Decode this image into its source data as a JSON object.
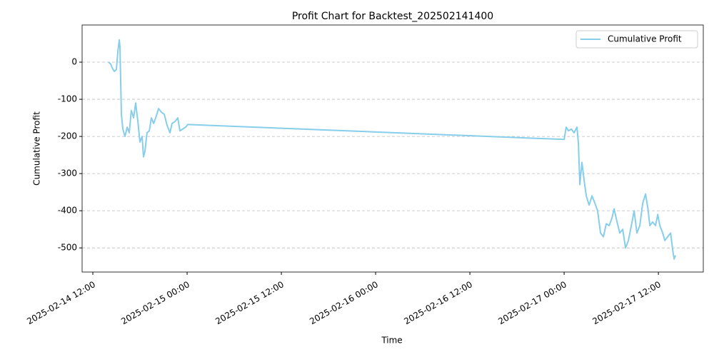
{
  "chart_data": {
    "type": "line",
    "title": "Profit Chart for Backtest_202502141400",
    "xlabel": "Time",
    "ylabel": "Cumulative Profit",
    "x": [
      "2025-02-14 14:00",
      "2025-02-14 14:16",
      "2025-02-14 14:27",
      "2025-02-14 14:44",
      "2025-02-14 15:00",
      "2025-02-14 15:11",
      "2025-02-14 15:22",
      "2025-02-14 15:27",
      "2025-02-14 15:38",
      "2025-02-14 15:49",
      "2025-02-14 16:05",
      "2025-02-14 16:22",
      "2025-02-14 16:38",
      "2025-02-14 16:54",
      "2025-02-14 17:11",
      "2025-02-14 17:27",
      "2025-02-14 17:44",
      "2025-02-14 18:00",
      "2025-02-14 18:16",
      "2025-02-14 18:27",
      "2025-02-14 18:38",
      "2025-02-14 18:54",
      "2025-02-14 19:11",
      "2025-02-14 19:27",
      "2025-02-14 19:44",
      "2025-02-14 20:00",
      "2025-02-14 20:22",
      "2025-02-14 20:44",
      "2025-02-14 21:05",
      "2025-02-14 21:27",
      "2025-02-14 21:49",
      "2025-02-14 22:05",
      "2025-02-14 22:27",
      "2025-02-14 22:49",
      "2025-02-14 23:05",
      "2025-02-14 23:27",
      "2025-02-14 23:49",
      "2025-02-15 00:05",
      "2025-02-17 00:00",
      "2025-02-17 00:16",
      "2025-02-17 00:33",
      "2025-02-17 00:55",
      "2025-02-17 01:16",
      "2025-02-17 01:38",
      "2025-02-17 01:49",
      "2025-02-17 02:00",
      "2025-02-17 02:16",
      "2025-02-17 02:33",
      "2025-02-17 02:49",
      "2025-02-17 03:11",
      "2025-02-17 03:33",
      "2025-02-17 03:55",
      "2025-02-17 04:16",
      "2025-02-17 04:38",
      "2025-02-17 05:00",
      "2025-02-17 05:22",
      "2025-02-17 05:44",
      "2025-02-17 06:05",
      "2025-02-17 06:22",
      "2025-02-17 06:44",
      "2025-02-17 07:05",
      "2025-02-17 07:27",
      "2025-02-17 07:49",
      "2025-02-17 08:11",
      "2025-02-17 08:33",
      "2025-02-17 08:55",
      "2025-02-17 09:16",
      "2025-02-17 09:38",
      "2025-02-17 10:00",
      "2025-02-17 10:22",
      "2025-02-17 10:38",
      "2025-02-17 10:55",
      "2025-02-17 11:16",
      "2025-02-17 11:38",
      "2025-02-17 11:55",
      "2025-02-17 12:11",
      "2025-02-17 12:33",
      "2025-02-17 12:49",
      "2025-02-17 13:11",
      "2025-02-17 13:33",
      "2025-02-17 13:49",
      "2025-02-17 14:00",
      "2025-02-17 14:11"
    ],
    "series": [
      {
        "name": "Cumulative Profit",
        "color": "#87ceeb",
        "values": [
          0,
          -5,
          -15,
          -25,
          -20,
          30,
          60,
          40,
          -140,
          -180,
          -200,
          -175,
          -190,
          -130,
          -150,
          -110,
          -160,
          -215,
          -200,
          -255,
          -240,
          -190,
          -185,
          -150,
          -165,
          -150,
          -125,
          -135,
          -140,
          -170,
          -190,
          -165,
          -160,
          -150,
          -185,
          -180,
          -175,
          -168,
          -208,
          -175,
          -185,
          -180,
          -190,
          -175,
          -220,
          -330,
          -270,
          -320,
          -360,
          -385,
          -360,
          -380,
          -400,
          -460,
          -470,
          -435,
          -440,
          -420,
          -395,
          -430,
          -460,
          -450,
          -500,
          -480,
          -440,
          -400,
          -460,
          -440,
          -380,
          -355,
          -390,
          -440,
          -430,
          -440,
          -410,
          -440,
          -460,
          -480,
          -470,
          -460,
          -505,
          -530,
          -520
        ]
      }
    ],
    "xlim": [
      "2025-02-14 10:38",
      "2025-02-17 17:43"
    ],
    "xticks": [
      "2025-02-14 12:00",
      "2025-02-15 00:00",
      "2025-02-15 12:00",
      "2025-02-16 00:00",
      "2025-02-16 12:00",
      "2025-02-17 00:00",
      "2025-02-17 12:00"
    ],
    "ylim": [
      -565,
      100
    ],
    "yticks": [
      -500,
      -400,
      -300,
      -200,
      -100,
      0
    ],
    "grid": true,
    "legend": "upper right"
  }
}
